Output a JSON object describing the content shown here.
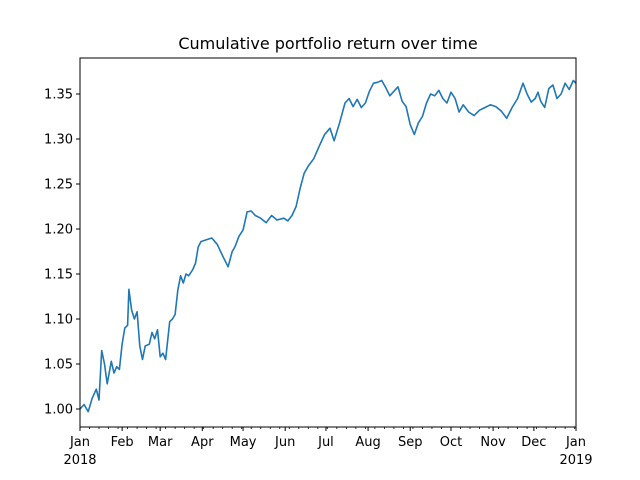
{
  "chart_data": {
    "type": "line",
    "title": "Cumulative portfolio return over time",
    "xlabel": "",
    "ylabel": "",
    "xlim": [
      "2018-01-01",
      "2019-01-01"
    ],
    "ylim": [
      0.98,
      1.39
    ],
    "yticks": [
      1.0,
      1.05,
      1.1,
      1.15,
      1.2,
      1.25,
      1.3,
      1.35
    ],
    "ytick_labels": [
      "1.00",
      "1.05",
      "1.10",
      "1.15",
      "1.20",
      "1.25",
      "1.30",
      "1.35"
    ],
    "xticks": [
      {
        "date": "2018-01-01",
        "label": "Jan",
        "sublabel": "2018"
      },
      {
        "date": "2018-02-01",
        "label": "Feb",
        "sublabel": ""
      },
      {
        "date": "2018-03-01",
        "label": "Mar",
        "sublabel": ""
      },
      {
        "date": "2018-04-01",
        "label": "Apr",
        "sublabel": ""
      },
      {
        "date": "2018-05-01",
        "label": "May",
        "sublabel": ""
      },
      {
        "date": "2018-06-01",
        "label": "Jun",
        "sublabel": ""
      },
      {
        "date": "2018-07-01",
        "label": "Jul",
        "sublabel": ""
      },
      {
        "date": "2018-08-01",
        "label": "Aug",
        "sublabel": ""
      },
      {
        "date": "2018-09-01",
        "label": "Sep",
        "sublabel": ""
      },
      {
        "date": "2018-10-01",
        "label": "Oct",
        "sublabel": ""
      },
      {
        "date": "2018-11-01",
        "label": "Nov",
        "sublabel": ""
      },
      {
        "date": "2018-12-01",
        "label": "Dec",
        "sublabel": ""
      },
      {
        "date": "2019-01-01",
        "label": "Jan",
        "sublabel": "2019"
      }
    ],
    "grid": false,
    "legend": "none",
    "series": [
      {
        "color": "#1f77b4",
        "x": [
          "2018-01-01",
          "2018-01-04",
          "2018-01-07",
          "2018-01-10",
          "2018-01-13",
          "2018-01-15",
          "2018-01-17",
          "2018-01-19",
          "2018-01-21",
          "2018-01-24",
          "2018-01-26",
          "2018-01-28",
          "2018-01-30",
          "2018-02-01",
          "2018-02-03",
          "2018-02-05",
          "2018-02-06",
          "2018-02-08",
          "2018-02-10",
          "2018-02-12",
          "2018-02-14",
          "2018-02-16",
          "2018-02-18",
          "2018-02-21",
          "2018-02-23",
          "2018-02-25",
          "2018-02-27",
          "2018-03-01",
          "2018-03-03",
          "2018-03-05",
          "2018-03-08",
          "2018-03-10",
          "2018-03-12",
          "2018-03-14",
          "2018-03-16",
          "2018-03-18",
          "2018-03-20",
          "2018-03-22",
          "2018-03-25",
          "2018-03-27",
          "2018-03-29",
          "2018-03-31",
          "2018-04-04",
          "2018-04-08",
          "2018-04-12",
          "2018-04-16",
          "2018-04-20",
          "2018-04-23",
          "2018-04-25",
          "2018-04-28",
          "2018-05-01",
          "2018-05-04",
          "2018-05-07",
          "2018-05-10",
          "2018-05-14",
          "2018-05-18",
          "2018-05-22",
          "2018-05-26",
          "2018-05-31",
          "2018-06-03",
          "2018-06-06",
          "2018-06-09",
          "2018-06-12",
          "2018-06-15",
          "2018-06-18",
          "2018-06-22",
          "2018-06-26",
          "2018-06-30",
          "2018-07-04",
          "2018-07-07",
          "2018-07-11",
          "2018-07-15",
          "2018-07-18",
          "2018-07-21",
          "2018-07-24",
          "2018-07-27",
          "2018-07-30",
          "2018-08-02",
          "2018-08-05",
          "2018-08-08",
          "2018-08-11",
          "2018-08-14",
          "2018-08-17",
          "2018-08-20",
          "2018-08-23",
          "2018-08-26",
          "2018-08-29",
          "2018-09-01",
          "2018-09-04",
          "2018-09-07",
          "2018-09-10",
          "2018-09-13",
          "2018-09-16",
          "2018-09-19",
          "2018-09-22",
          "2018-09-25",
          "2018-09-28",
          "2018-10-01",
          "2018-10-04",
          "2018-10-07",
          "2018-10-10",
          "2018-10-14",
          "2018-10-18",
          "2018-10-22",
          "2018-10-26",
          "2018-10-30",
          "2018-11-03",
          "2018-11-07",
          "2018-11-11",
          "2018-11-15",
          "2018-11-19",
          "2018-11-23",
          "2018-11-26",
          "2018-11-29",
          "2018-12-02",
          "2018-12-04",
          "2018-12-06",
          "2018-12-09",
          "2018-12-12",
          "2018-12-15",
          "2018-12-18",
          "2018-12-21",
          "2018-12-24",
          "2018-12-27",
          "2018-12-30",
          "2019-01-01"
        ],
        "y": [
          1.0,
          1.005,
          0.997,
          1.012,
          1.022,
          1.01,
          1.065,
          1.05,
          1.028,
          1.053,
          1.04,
          1.047,
          1.044,
          1.072,
          1.09,
          1.093,
          1.133,
          1.11,
          1.1,
          1.108,
          1.07,
          1.055,
          1.07,
          1.072,
          1.085,
          1.078,
          1.088,
          1.058,
          1.062,
          1.055,
          1.097,
          1.1,
          1.105,
          1.132,
          1.148,
          1.14,
          1.15,
          1.148,
          1.155,
          1.162,
          1.18,
          1.186,
          1.188,
          1.19,
          1.183,
          1.17,
          1.158,
          1.175,
          1.18,
          1.192,
          1.199,
          1.219,
          1.22,
          1.215,
          1.212,
          1.207,
          1.215,
          1.21,
          1.212,
          1.209,
          1.215,
          1.225,
          1.245,
          1.262,
          1.27,
          1.278,
          1.292,
          1.305,
          1.312,
          1.298,
          1.318,
          1.34,
          1.345,
          1.336,
          1.344,
          1.335,
          1.34,
          1.353,
          1.362,
          1.363,
          1.365,
          1.357,
          1.348,
          1.353,
          1.358,
          1.342,
          1.336,
          1.316,
          1.305,
          1.318,
          1.325,
          1.34,
          1.35,
          1.348,
          1.354,
          1.345,
          1.34,
          1.352,
          1.345,
          1.33,
          1.338,
          1.33,
          1.326,
          1.332,
          1.335,
          1.338,
          1.336,
          1.331,
          1.323,
          1.335,
          1.345,
          1.362,
          1.35,
          1.341,
          1.345,
          1.352,
          1.342,
          1.335,
          1.356,
          1.36,
          1.345,
          1.35,
          1.362,
          1.355,
          1.365,
          1.362
        ]
      }
    ]
  }
}
